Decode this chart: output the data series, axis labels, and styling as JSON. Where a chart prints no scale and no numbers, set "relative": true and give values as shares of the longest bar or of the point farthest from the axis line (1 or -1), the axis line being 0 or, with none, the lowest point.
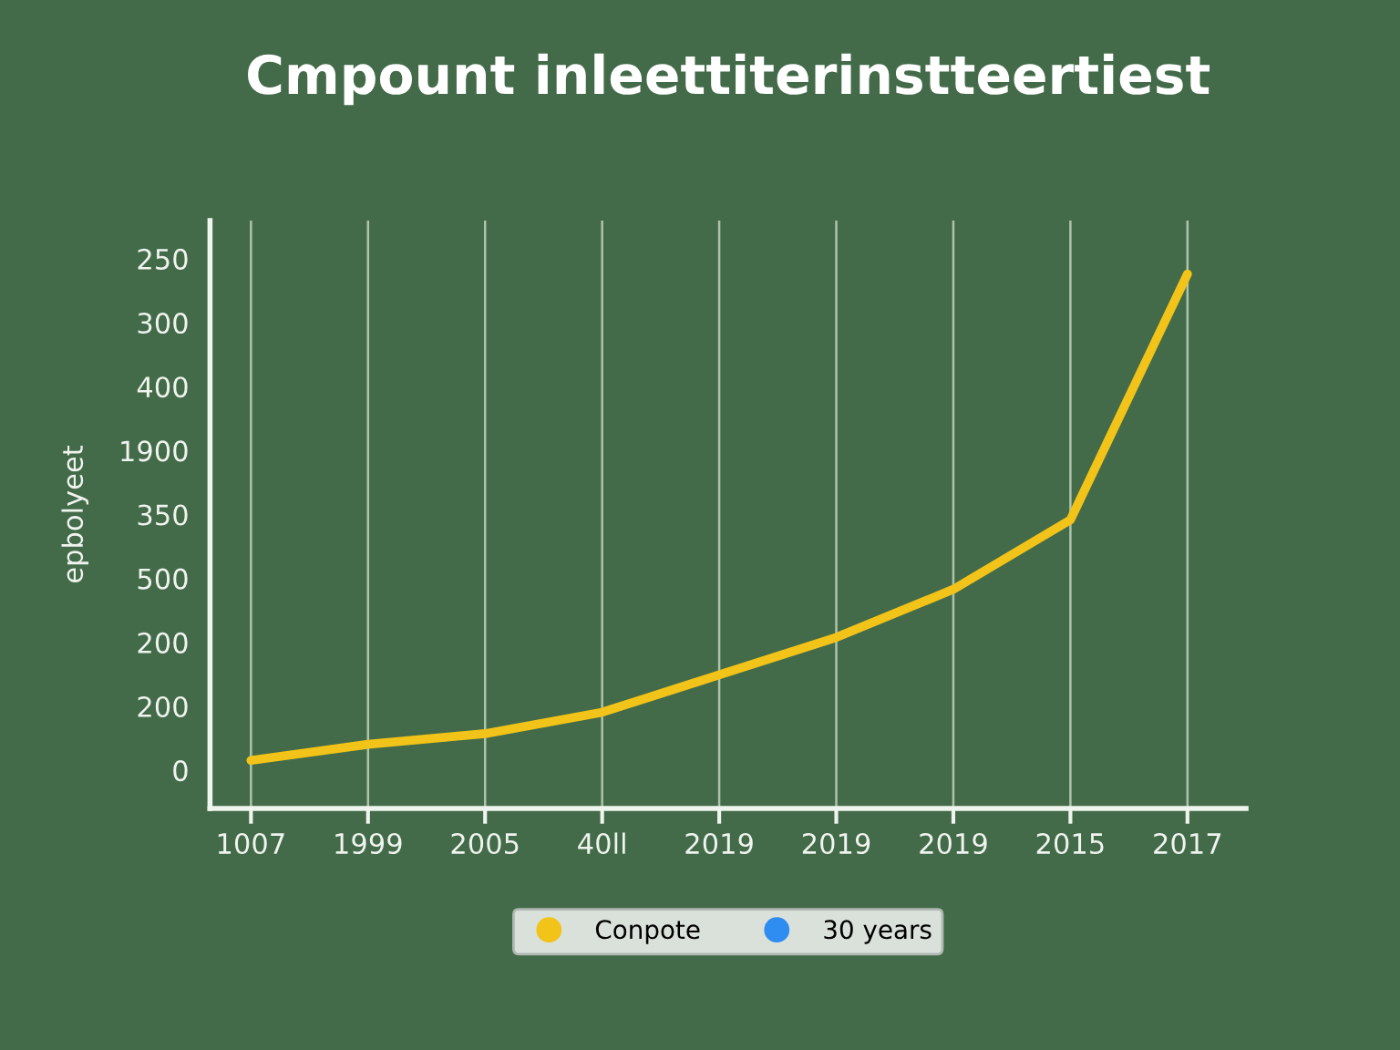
{
  "chart_data": {
    "type": "line",
    "title": "Cmpount inleettiterinstteertiest",
    "ylabel": "epbolyeet",
    "categories": [
      "1007",
      "1999",
      "2005",
      "40ll",
      "2019",
      "2019",
      "2019",
      "2015",
      "2017"
    ],
    "series": [
      {
        "name": "Conpote",
        "color": "#f2c318",
        "values": [
          0.09,
          0.12,
          0.14,
          0.18,
          0.25,
          0.32,
          0.41,
          0.54,
          1
        ]
      },
      {
        "name": "30 years",
        "color": "#2f8cf0",
        "values": [
          null,
          null,
          null,
          null,
          null,
          null,
          null,
          null,
          null
        ]
      }
    ],
    "relative": true,
    "annotations": [
      "250",
      "300",
      "400",
      "1900",
      "350",
      "500",
      "200",
      "200",
      "0"
    ],
    "grid": "x",
    "legend": "bottom",
    "marker": "none",
    "line_style": "solid"
  }
}
